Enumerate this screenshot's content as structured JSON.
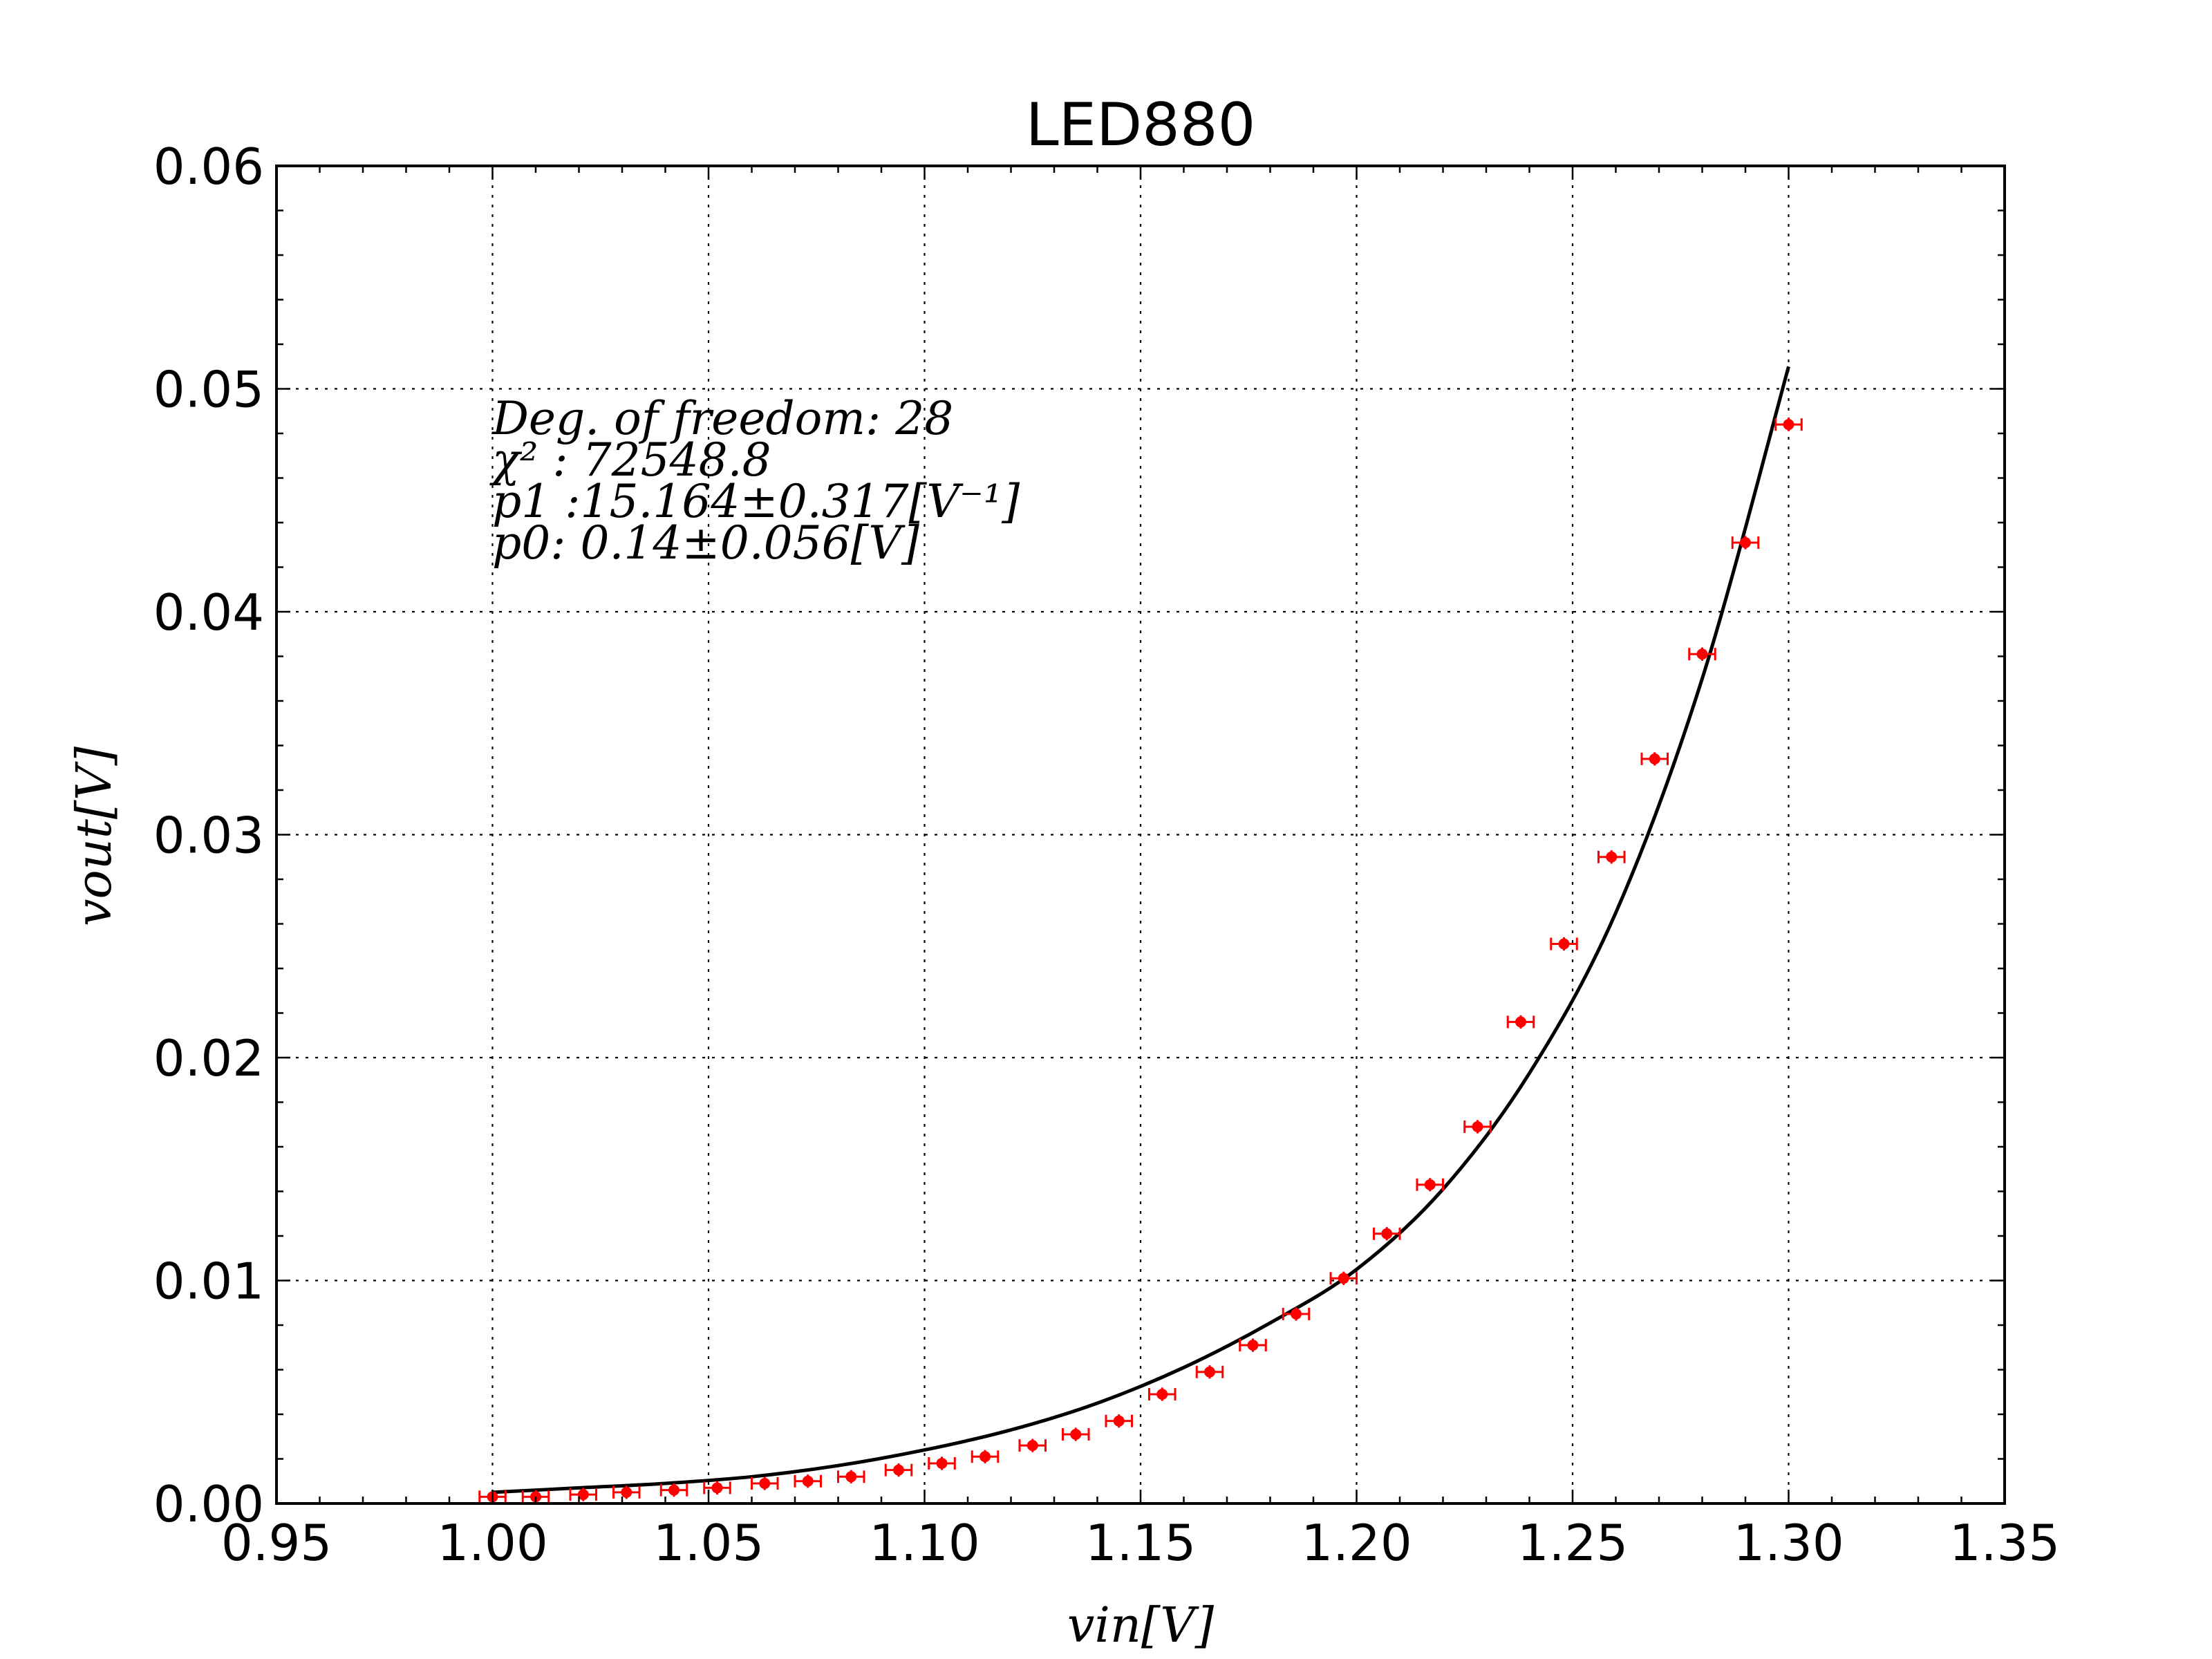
{
  "chart_data": {
    "type": "scatter",
    "title": "LED880",
    "xlabel": "vin[V]",
    "ylabel": "vout[V]",
    "xlim": [
      0.95,
      1.35
    ],
    "ylim": [
      0.0,
      0.06
    ],
    "grid": true,
    "x_ticks": [
      "0.95",
      "1.00",
      "1.05",
      "1.10",
      "1.15",
      "1.20",
      "1.25",
      "1.30",
      "1.35"
    ],
    "y_ticks": [
      "0.00",
      "0.01",
      "0.02",
      "0.03",
      "0.04",
      "0.05",
      "0.06"
    ],
    "annotations": [
      "Deg. of freedom: 28",
      "χ² : 72548.8",
      "p1 :15.164±0.317[V⁻¹]",
      "p0: 0.14±0.056[V]"
    ],
    "colors": {
      "data": "#ff0000",
      "fit": "#000000"
    },
    "series": [
      {
        "type": "scatter",
        "x": [
          1.0,
          1.01,
          1.021,
          1.031,
          1.042,
          1.052,
          1.063,
          1.073,
          1.083,
          1.094,
          1.104,
          1.114,
          1.125,
          1.135,
          1.145,
          1.155,
          1.166,
          1.176,
          1.186,
          1.197,
          1.207,
          1.217,
          1.228,
          1.238,
          1.248,
          1.259,
          1.269,
          1.28,
          1.29,
          1.3
        ],
        "y": [
          0.0003,
          0.0003,
          0.0004,
          0.0005,
          0.0006,
          0.0007,
          0.0009,
          0.001,
          0.0012,
          0.0015,
          0.0018,
          0.0021,
          0.0026,
          0.0031,
          0.0037,
          0.0049,
          0.0059,
          0.0071,
          0.0085,
          0.0101,
          0.0121,
          0.0143,
          0.0169,
          0.0216,
          0.0251,
          0.029,
          0.0334,
          0.0381,
          0.0431,
          0.0484
        ],
        "x_err": 0.003,
        "y_err": 0.0003
      },
      {
        "type": "line",
        "x": [
          1.0,
          1.02,
          1.04,
          1.06,
          1.08,
          1.1,
          1.12,
          1.14,
          1.16,
          1.18,
          1.2,
          1.22,
          1.24,
          1.26,
          1.28,
          1.3
        ],
        "y": [
          0.0005,
          0.0007,
          0.0009,
          0.0012,
          0.0017,
          0.0024,
          0.0033,
          0.0045,
          0.0061,
          0.0081,
          0.0105,
          0.0141,
          0.0193,
          0.0265,
          0.037,
          0.051
        ]
      }
    ]
  }
}
